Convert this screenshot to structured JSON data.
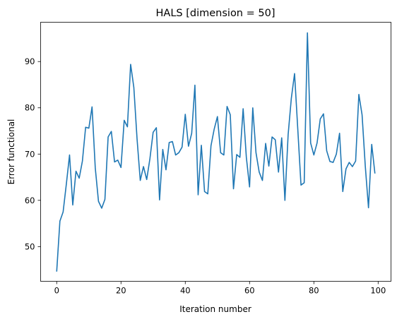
{
  "chart_data": {
    "type": "line",
    "title": "HALS [dimension = 50]",
    "xlabel": "Iteration number",
    "ylabel": "Error functional",
    "xlim": [
      -5,
      104
    ],
    "ylim": [
      42.5,
      98.5
    ],
    "xticks": [
      0,
      20,
      40,
      60,
      80,
      100
    ],
    "yticks": [
      50,
      60,
      70,
      80,
      90
    ],
    "grid": false,
    "legend": "none",
    "series": [
      {
        "color": "#1f77b4",
        "x": [
          0,
          1,
          2,
          3,
          4,
          5,
          6,
          7,
          8,
          9,
          10,
          11,
          12,
          13,
          14,
          15,
          16,
          17,
          18,
          19,
          20,
          21,
          22,
          23,
          24,
          25,
          26,
          27,
          28,
          29,
          30,
          31,
          32,
          33,
          34,
          35,
          36,
          37,
          38,
          39,
          40,
          41,
          42,
          43,
          44,
          45,
          46,
          47,
          48,
          49,
          50,
          51,
          52,
          53,
          54,
          55,
          56,
          57,
          58,
          59,
          60,
          61,
          62,
          63,
          64,
          65,
          66,
          67,
          68,
          69,
          70,
          71,
          72,
          73,
          74,
          75,
          76,
          77,
          78,
          79,
          80,
          81,
          82,
          83,
          84,
          85,
          86,
          87,
          88,
          89,
          90,
          91,
          92,
          93,
          94,
          95,
          96,
          97,
          98,
          99
        ],
        "y": [
          44.6,
          55.5,
          57.5,
          63.5,
          69.8,
          59.0,
          66.3,
          64.8,
          68.5,
          75.8,
          75.6,
          80.2,
          67.0,
          59.8,
          58.3,
          60.2,
          73.7,
          74.9,
          68.3,
          68.7,
          67.1,
          77.3,
          75.9,
          89.4,
          84.4,
          73.3,
          64.3,
          67.3,
          64.5,
          69.0,
          74.7,
          75.7,
          60.1,
          71.0,
          66.6,
          72.5,
          72.7,
          69.8,
          70.3,
          71.5,
          78.6,
          71.7,
          74.5,
          84.9,
          61.2,
          71.9,
          61.9,
          61.4,
          71.8,
          75.4,
          78.1,
          70.3,
          69.8,
          80.3,
          78.5,
          62.5,
          69.9,
          69.3,
          79.8,
          69.3,
          62.9,
          80.0,
          70.3,
          66.1,
          64.3,
          72.3,
          67.4,
          73.7,
          73.1,
          66.1,
          73.5,
          60.0,
          74.2,
          82.1,
          87.4,
          75.4,
          63.3,
          63.8,
          96.2,
          72.4,
          69.8,
          72.4,
          77.6,
          78.7,
          70.7,
          68.4,
          68.2,
          70.0,
          74.5,
          61.9,
          66.8,
          68.2,
          67.3,
          68.5,
          82.9,
          78.5,
          67.4,
          58.4,
          72.1,
          65.8
        ]
      }
    ]
  }
}
